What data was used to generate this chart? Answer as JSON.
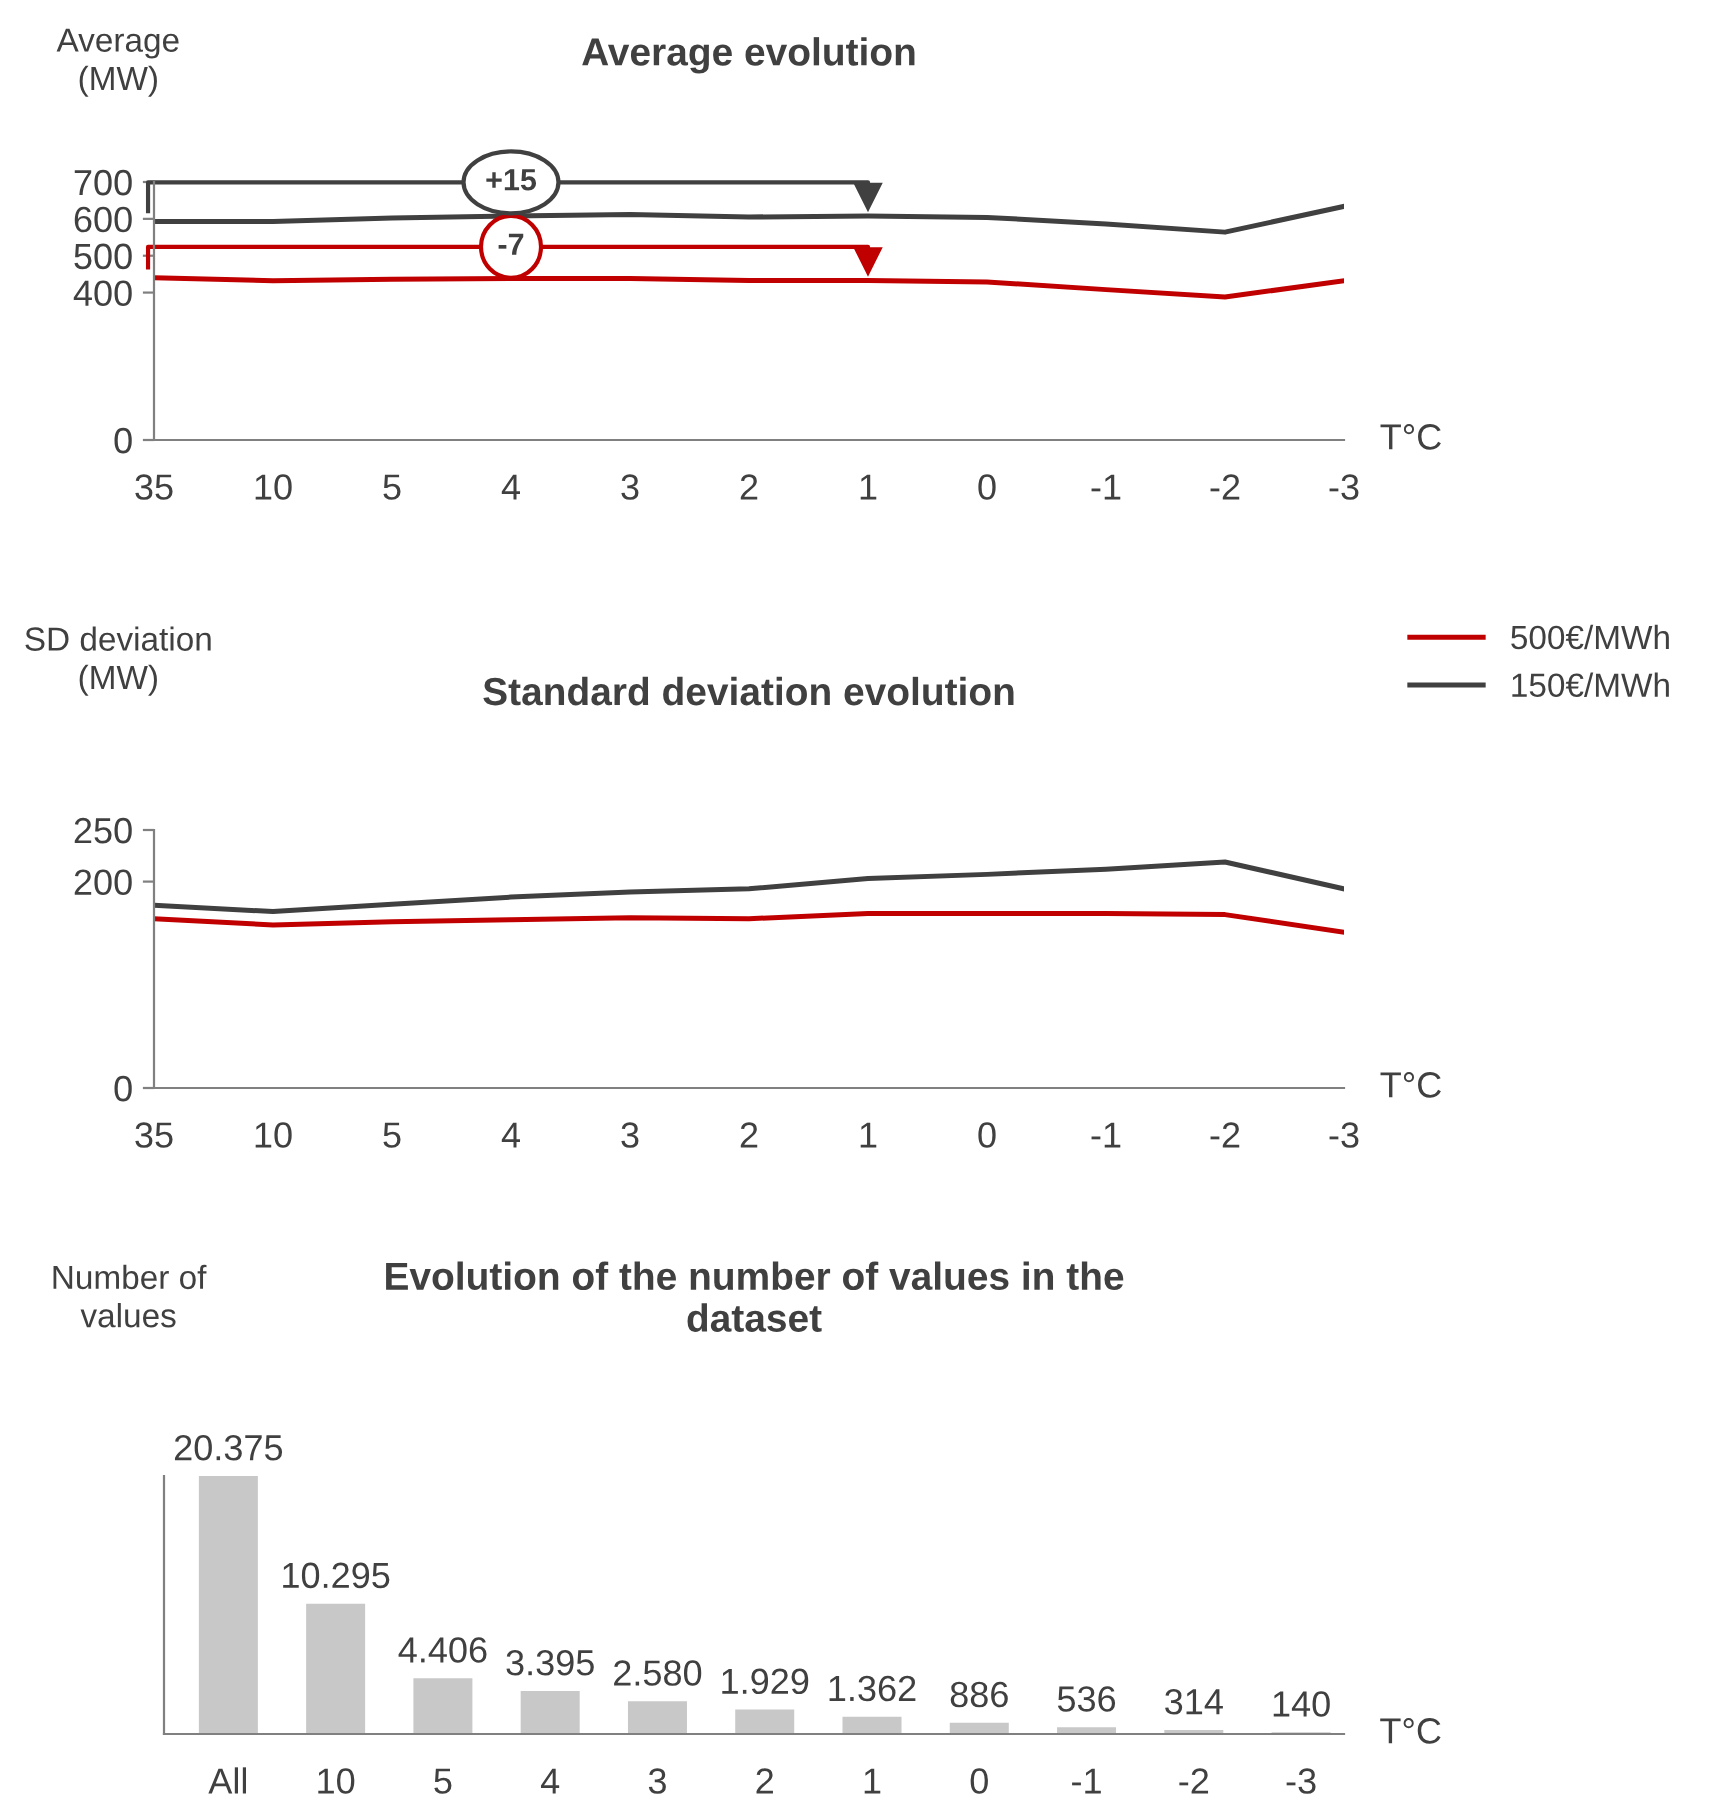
{
  "chart_data": [
    {
      "type": "line",
      "title": "Average evolution",
      "ylabel": "Average\n(MW)",
      "xlabel": "T°C",
      "categories": [
        "35",
        "10",
        "5",
        "4",
        "3",
        "2",
        "1",
        "0",
        "-1",
        "-2",
        "-3"
      ],
      "series": [
        {
          "name": "500€/MWh",
          "color": "#c00000",
          "values": [
            440,
            432,
            436,
            438,
            438,
            433,
            433,
            429,
            408,
            388,
            432
          ]
        },
        {
          "name": "150€/MWh",
          "color": "#404040",
          "values": [
            593,
            593,
            602,
            608,
            612,
            605,
            608,
            604,
            586,
            564,
            634
          ]
        }
      ],
      "annotations": [
        "-7",
        "+15"
      ],
      "ylim": [
        0,
        700
      ],
      "yticks": [
        0,
        400,
        500,
        600,
        700
      ],
      "grid": false,
      "legend": "bottom right"
    },
    {
      "type": "line",
      "title": "Standard deviation evolution",
      "ylabel": "SD deviation\n(MW)",
      "xlabel": "T°C",
      "categories": [
        "35",
        "10",
        "5",
        "4",
        "3",
        "2",
        "1",
        "0",
        "-1",
        "-2",
        "-3"
      ],
      "series": [
        {
          "color": "#c00000",
          "values": [
            164,
            158,
            161,
            163,
            165,
            164,
            169,
            169,
            169,
            168,
            151
          ]
        },
        {
          "color": "#404040",
          "values": [
            177,
            171,
            178,
            185,
            190,
            193,
            203,
            207,
            212,
            219,
            193
          ]
        }
      ],
      "ylim": [
        0,
        250
      ],
      "yticks": [
        0,
        200,
        250
      ],
      "grid": false
    },
    {
      "type": "bar",
      "title": "Evolution of the number of values in the\ndataset",
      "ylabel": "Number of\nvalues",
      "xlabel": "T°C",
      "categories": [
        "All",
        "10",
        "5",
        "4",
        "3",
        "2",
        "1",
        "0",
        "-1",
        "-2",
        "-3"
      ],
      "values": [
        20375,
        10295,
        4406,
        3395,
        2580,
        1929,
        1362,
        886,
        536,
        314,
        140
      ],
      "value_labels": [
        "20.375",
        "10.295",
        "4.406",
        "3.395",
        "2.580",
        "1.929",
        "1.362",
        "886",
        "536",
        "314",
        "140"
      ],
      "color": "#c8c8c8",
      "tick_labels": "x",
      "grid": false,
      "legend": false
    }
  ]
}
